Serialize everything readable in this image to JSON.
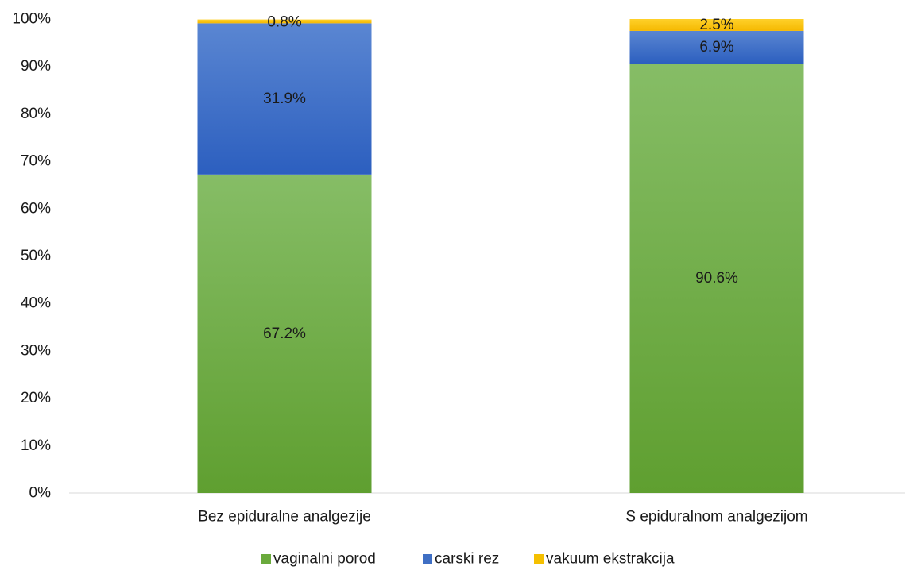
{
  "chart_data": {
    "type": "bar",
    "stacked": true,
    "categories": [
      "Bez epiduralne analgezije",
      "S epiduralnom analgezijom"
    ],
    "series": [
      {
        "name": "vaginalni porod",
        "values": [
          67.2,
          90.6
        ],
        "labels": [
          "67.2%",
          "90.6%"
        ],
        "color": "#6aaa3c"
      },
      {
        "name": "carski rez",
        "values": [
          31.9,
          6.9
        ],
        "labels": [
          "31.9%",
          "6.9%"
        ],
        "color": "#3f6fc4"
      },
      {
        "name": "vakuum ekstrakcija",
        "values": [
          0.8,
          2.5
        ],
        "labels": [
          "0.8%",
          "2.5%"
        ],
        "color": "#f5c000"
      }
    ],
    "y_ticks": [
      "0%",
      "10%",
      "20%",
      "30%",
      "40%",
      "50%",
      "60%",
      "70%",
      "80%",
      "90%",
      "100%"
    ],
    "ylim": [
      0,
      100
    ],
    "grid": false,
    "legend_position": "bottom"
  }
}
